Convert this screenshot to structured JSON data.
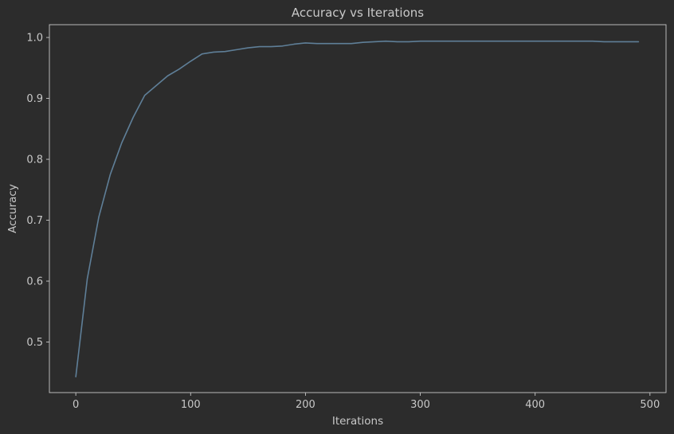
{
  "chart_data": {
    "type": "line",
    "title": "Accuracy vs Iterations",
    "xlabel": "Iterations",
    "ylabel": "Accuracy",
    "xlim": [
      -23,
      514
    ],
    "ylim": [
      0.417,
      1.021
    ],
    "xticks": [
      0,
      100,
      200,
      300,
      400,
      500
    ],
    "yticks": [
      0.5,
      0.6,
      0.7,
      0.8,
      0.9,
      1.0
    ],
    "ytick_labels": [
      "0.5",
      "0.6",
      "0.7",
      "0.8",
      "0.9",
      "1.0"
    ],
    "grid": false,
    "colors": {
      "background": "#2c2c2c",
      "axes_frame": "#c8c8c8",
      "text": "#c8c8c8",
      "line": "#5f7f98"
    },
    "series": [
      {
        "x": [
          0,
          10,
          20,
          30,
          40,
          50,
          60,
          70,
          80,
          90,
          100,
          110,
          120,
          130,
          140,
          150,
          160,
          170,
          180,
          190,
          200,
          210,
          220,
          230,
          240,
          250,
          260,
          270,
          280,
          290,
          300,
          310,
          320,
          330,
          340,
          350,
          360,
          370,
          380,
          390,
          400,
          410,
          420,
          430,
          440,
          450,
          460,
          470,
          480,
          490
        ],
        "y": [
          0.443,
          0.604,
          0.705,
          0.775,
          0.827,
          0.869,
          0.905,
          0.921,
          0.937,
          0.948,
          0.961,
          0.973,
          0.976,
          0.977,
          0.98,
          0.983,
          0.985,
          0.985,
          0.986,
          0.989,
          0.991,
          0.99,
          0.99,
          0.99,
          0.99,
          0.992,
          0.993,
          0.994,
          0.993,
          0.993,
          0.994,
          0.994,
          0.994,
          0.994,
          0.994,
          0.994,
          0.994,
          0.994,
          0.994,
          0.994,
          0.994,
          0.994,
          0.994,
          0.994,
          0.994,
          0.994,
          0.993,
          0.993,
          0.993,
          0.993
        ]
      }
    ]
  }
}
